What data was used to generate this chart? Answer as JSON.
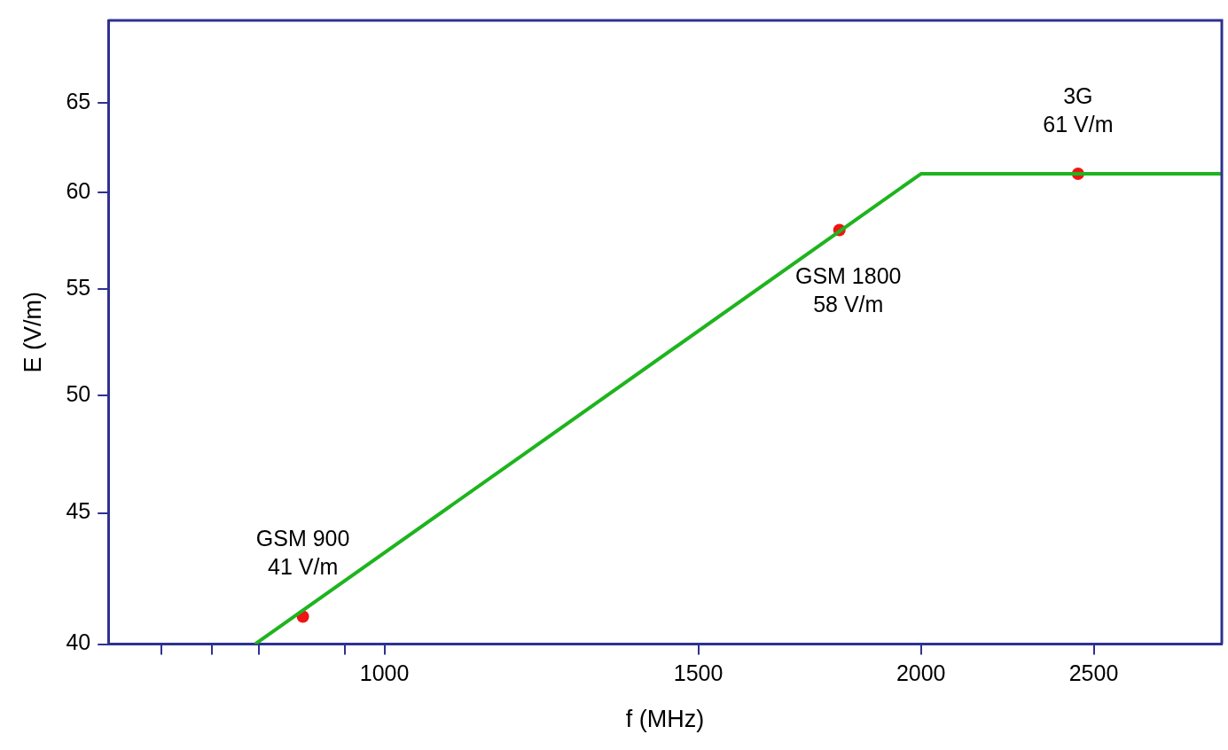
{
  "chart_data": {
    "type": "line",
    "xlabel": "f (MHz)",
    "ylabel": "E (V/m)",
    "log": "xy",
    "grid": false,
    "legend": false,
    "xlim": [
      700,
      2950
    ],
    "xticks": [
      {
        "value": 750,
        "label": null
      },
      {
        "value": 800,
        "label": null
      },
      {
        "value": 850,
        "label": null
      },
      {
        "value": 950,
        "label": null
      },
      1000,
      1500,
      2000,
      2500
    ],
    "ylim": [
      40,
      70
    ],
    "yticks": [
      40,
      45,
      50,
      55,
      60,
      65
    ],
    "series": [
      {
        "type": "line",
        "color": "#1eb41e",
        "x": [
          846,
          2000,
          2950
        ],
        "values": [
          40,
          61,
          61
        ],
        "marker": "none"
      },
      {
        "type": "scatter",
        "color": "#f01414",
        "x": [
          900,
          1800,
          2450
        ],
        "values": [
          41,
          58,
          61
        ],
        "marker": "circle"
      }
    ],
    "annotations": [
      {
        "text": "GSM 900\n41 V/m",
        "x": 900,
        "y": 41
      },
      {
        "text": "GSM 1800\n58 V/m",
        "x": 1800,
        "y": 58
      },
      {
        "text": "3G\n61 V/m",
        "x": 2450,
        "y": 61
      }
    ]
  }
}
